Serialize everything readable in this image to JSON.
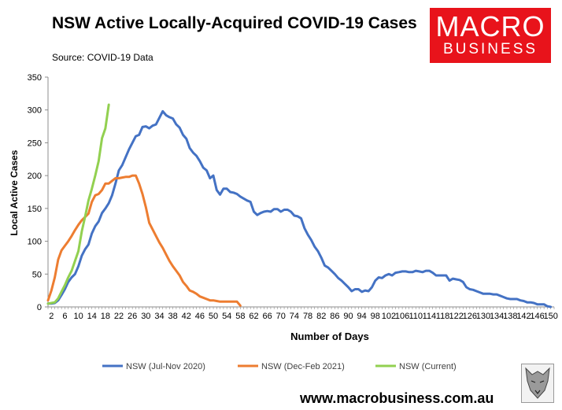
{
  "header": {
    "title": "NSW Active Locally-Acquired COVID-19 Cases",
    "source": "Source: COVID-19 Data",
    "logo_line1": "MACRO",
    "logo_line2": "BUSINESS"
  },
  "footer": {
    "website": "www.macrobusiness.com.au"
  },
  "colors": {
    "jul_nov": "#4472c4",
    "dec_feb": "#ed7d31",
    "current": "#92d050",
    "logo_bg": "#e8131b"
  },
  "chart_data": {
    "type": "line",
    "xlabel": "Number of Days",
    "ylabel": "Local Active Cases",
    "xlim": [
      1,
      151
    ],
    "ylim": [
      0,
      350
    ],
    "yticks": [
      0,
      50,
      100,
      150,
      200,
      250,
      300,
      350
    ],
    "xticks": [
      2,
      6,
      10,
      14,
      18,
      22,
      26,
      30,
      34,
      38,
      42,
      46,
      50,
      54,
      58,
      62,
      66,
      70,
      74,
      78,
      82,
      86,
      90,
      94,
      98,
      102,
      106,
      110,
      114,
      118,
      122,
      126,
      130,
      134,
      138,
      142,
      146,
      150
    ],
    "xtick_labels": [
      "2",
      "6",
      "10",
      "14",
      "18",
      "22",
      "26",
      "30",
      "34",
      "38",
      "42",
      "46",
      "50",
      "54",
      "58",
      "62",
      "66",
      "70",
      "74",
      "78",
      "82",
      "86",
      "90",
      "94",
      "98",
      "102",
      "106",
      "110",
      "114",
      "118",
      "122",
      "126",
      "130",
      "134",
      "138",
      "142",
      "146",
      "150"
    ],
    "grid": false,
    "legend_position": "bottom",
    "series": [
      {
        "name": "NSW (Jul-Nov 2020)",
        "color": "#4472c4",
        "points": [
          [
            1,
            5
          ],
          [
            2,
            5
          ],
          [
            3,
            6
          ],
          [
            4,
            10
          ],
          [
            5,
            18
          ],
          [
            6,
            27
          ],
          [
            7,
            38
          ],
          [
            8,
            45
          ],
          [
            9,
            50
          ],
          [
            10,
            62
          ],
          [
            11,
            78
          ],
          [
            12,
            88
          ],
          [
            13,
            95
          ],
          [
            14,
            112
          ],
          [
            15,
            123
          ],
          [
            16,
            130
          ],
          [
            17,
            143
          ],
          [
            18,
            150
          ],
          [
            19,
            158
          ],
          [
            20,
            170
          ],
          [
            21,
            188
          ],
          [
            22,
            208
          ],
          [
            23,
            216
          ],
          [
            24,
            228
          ],
          [
            25,
            240
          ],
          [
            26,
            250
          ],
          [
            27,
            260
          ],
          [
            28,
            262
          ],
          [
            29,
            274
          ],
          [
            30,
            275
          ],
          [
            31,
            272
          ],
          [
            32,
            276
          ],
          [
            33,
            278
          ],
          [
            34,
            288
          ],
          [
            35,
            298
          ],
          [
            36,
            292
          ],
          [
            37,
            289
          ],
          [
            38,
            287
          ],
          [
            39,
            278
          ],
          [
            40,
            273
          ],
          [
            41,
            262
          ],
          [
            42,
            256
          ],
          [
            43,
            242
          ],
          [
            44,
            235
          ],
          [
            45,
            230
          ],
          [
            46,
            222
          ],
          [
            47,
            212
          ],
          [
            48,
            208
          ],
          [
            49,
            196
          ],
          [
            50,
            200
          ],
          [
            51,
            178
          ],
          [
            52,
            171
          ],
          [
            53,
            180
          ],
          [
            54,
            180
          ],
          [
            55,
            175
          ],
          [
            56,
            174
          ],
          [
            57,
            172
          ],
          [
            58,
            168
          ],
          [
            59,
            165
          ],
          [
            60,
            162
          ],
          [
            61,
            160
          ],
          [
            62,
            145
          ],
          [
            63,
            140
          ],
          [
            64,
            143
          ],
          [
            65,
            145
          ],
          [
            66,
            146
          ],
          [
            67,
            145
          ],
          [
            68,
            149
          ],
          [
            69,
            149
          ],
          [
            70,
            145
          ],
          [
            71,
            148
          ],
          [
            72,
            148
          ],
          [
            73,
            145
          ],
          [
            74,
            139
          ],
          [
            75,
            138
          ],
          [
            76,
            135
          ],
          [
            77,
            120
          ],
          [
            78,
            110
          ],
          [
            79,
            102
          ],
          [
            80,
            92
          ],
          [
            81,
            85
          ],
          [
            82,
            75
          ],
          [
            83,
            63
          ],
          [
            84,
            60
          ],
          [
            85,
            55
          ],
          [
            86,
            50
          ],
          [
            87,
            44
          ],
          [
            88,
            40
          ],
          [
            89,
            35
          ],
          [
            90,
            30
          ],
          [
            91,
            24
          ],
          [
            92,
            27
          ],
          [
            93,
            27
          ],
          [
            94,
            23
          ],
          [
            95,
            25
          ],
          [
            96,
            24
          ],
          [
            97,
            30
          ],
          [
            98,
            40
          ],
          [
            99,
            45
          ],
          [
            100,
            44
          ],
          [
            101,
            48
          ],
          [
            102,
            50
          ],
          [
            103,
            48
          ],
          [
            104,
            52
          ],
          [
            105,
            53
          ],
          [
            106,
            54
          ],
          [
            107,
            54
          ],
          [
            108,
            53
          ],
          [
            109,
            53
          ],
          [
            110,
            55
          ],
          [
            111,
            54
          ],
          [
            112,
            53
          ],
          [
            113,
            55
          ],
          [
            114,
            55
          ],
          [
            115,
            52
          ],
          [
            116,
            48
          ],
          [
            117,
            48
          ],
          [
            118,
            48
          ],
          [
            119,
            48
          ],
          [
            120,
            40
          ],
          [
            121,
            43
          ],
          [
            122,
            42
          ],
          [
            123,
            41
          ],
          [
            124,
            38
          ],
          [
            125,
            30
          ],
          [
            126,
            27
          ],
          [
            127,
            26
          ],
          [
            128,
            24
          ],
          [
            129,
            22
          ],
          [
            130,
            20
          ],
          [
            131,
            20
          ],
          [
            132,
            20
          ],
          [
            133,
            19
          ],
          [
            134,
            19
          ],
          [
            135,
            17
          ],
          [
            136,
            15
          ],
          [
            137,
            13
          ],
          [
            138,
            12
          ],
          [
            139,
            12
          ],
          [
            140,
            12
          ],
          [
            141,
            10
          ],
          [
            142,
            9
          ],
          [
            143,
            7
          ],
          [
            144,
            7
          ],
          [
            145,
            6
          ],
          [
            146,
            4
          ],
          [
            147,
            4
          ],
          [
            148,
            4
          ],
          [
            149,
            1
          ],
          [
            150,
            0
          ]
        ]
      },
      {
        "name": "NSW (Dec-Feb 2021)",
        "color": "#ed7d31",
        "points": [
          [
            1,
            10
          ],
          [
            2,
            25
          ],
          [
            3,
            45
          ],
          [
            4,
            72
          ],
          [
            5,
            86
          ],
          [
            6,
            93
          ],
          [
            7,
            100
          ],
          [
            8,
            108
          ],
          [
            9,
            117
          ],
          [
            10,
            125
          ],
          [
            11,
            132
          ],
          [
            12,
            137
          ],
          [
            13,
            142
          ],
          [
            14,
            160
          ],
          [
            15,
            170
          ],
          [
            16,
            172
          ],
          [
            17,
            178
          ],
          [
            18,
            188
          ],
          [
            19,
            188
          ],
          [
            20,
            192
          ],
          [
            21,
            196
          ],
          [
            22,
            196
          ],
          [
            23,
            197
          ],
          [
            24,
            198
          ],
          [
            25,
            198
          ],
          [
            26,
            200
          ],
          [
            27,
            200
          ],
          [
            28,
            188
          ],
          [
            29,
            172
          ],
          [
            30,
            152
          ],
          [
            31,
            128
          ],
          [
            32,
            118
          ],
          [
            33,
            108
          ],
          [
            34,
            98
          ],
          [
            35,
            90
          ],
          [
            36,
            80
          ],
          [
            37,
            70
          ],
          [
            38,
            62
          ],
          [
            39,
            55
          ],
          [
            40,
            48
          ],
          [
            41,
            38
          ],
          [
            42,
            32
          ],
          [
            43,
            25
          ],
          [
            44,
            23
          ],
          [
            45,
            20
          ],
          [
            46,
            16
          ],
          [
            47,
            14
          ],
          [
            48,
            12
          ],
          [
            49,
            10
          ],
          [
            50,
            10
          ],
          [
            51,
            9
          ],
          [
            52,
            8
          ],
          [
            53,
            8
          ],
          [
            54,
            8
          ],
          [
            55,
            8
          ],
          [
            56,
            8
          ],
          [
            57,
            8
          ],
          [
            58,
            2
          ]
        ]
      },
      {
        "name": "NSW (Current)",
        "color": "#92d050",
        "points": [
          [
            1,
            5
          ],
          [
            2,
            6
          ],
          [
            3,
            7
          ],
          [
            4,
            13
          ],
          [
            5,
            23
          ],
          [
            6,
            33
          ],
          [
            7,
            45
          ],
          [
            8,
            55
          ],
          [
            9,
            70
          ],
          [
            10,
            85
          ],
          [
            11,
            115
          ],
          [
            12,
            138
          ],
          [
            13,
            162
          ],
          [
            14,
            180
          ],
          [
            15,
            200
          ],
          [
            16,
            222
          ],
          [
            17,
            257
          ],
          [
            18,
            272
          ],
          [
            19,
            308
          ]
        ]
      }
    ]
  }
}
